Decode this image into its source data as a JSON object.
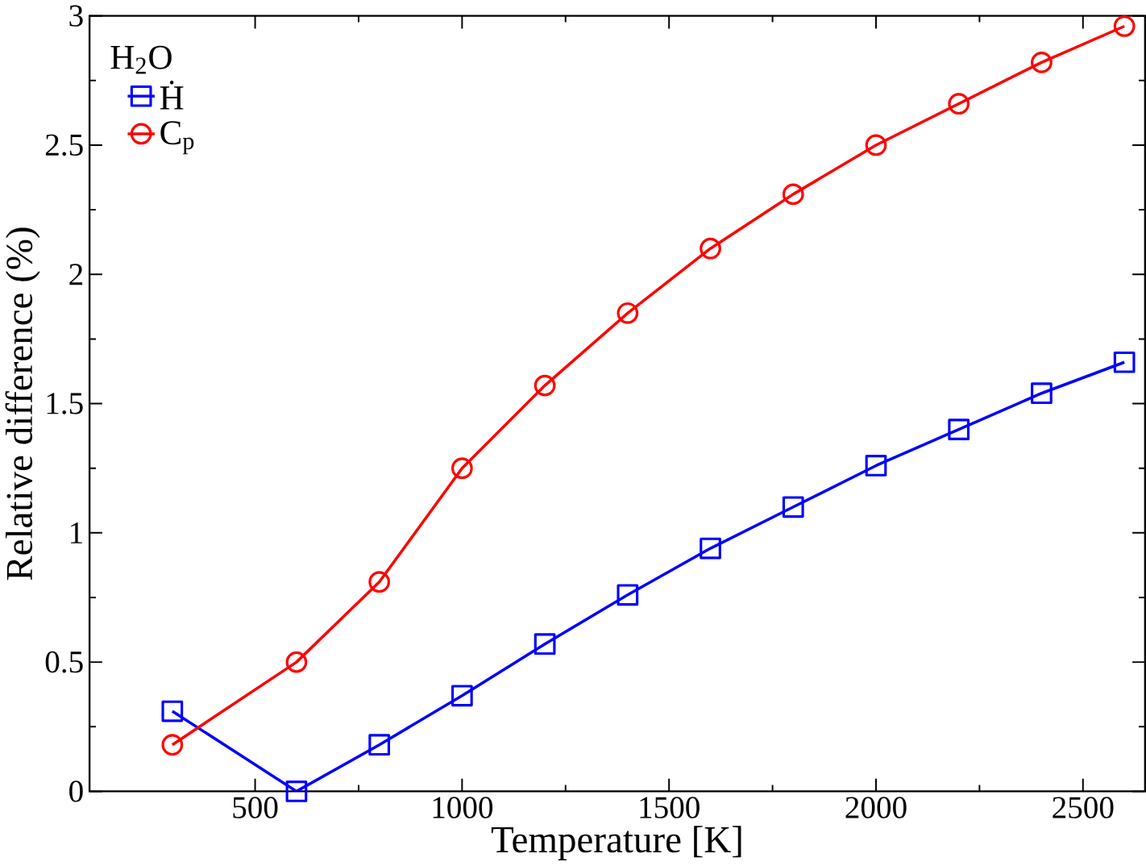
{
  "chart_data": {
    "type": "line",
    "xlabel": "Temperature [K]",
    "ylabel": "Relative difference (%)",
    "legend_title": "H$_{2}$O",
    "x": [
      300,
      600,
      800,
      1000,
      1200,
      1400,
      1600,
      1800,
      2000,
      2200,
      2400,
      2600
    ],
    "series": [
      {
        "name": "Ḣ",
        "color": "#0000ff",
        "marker": "square",
        "values": [
          0.31,
          0.0,
          0.18,
          0.37,
          0.57,
          0.76,
          0.94,
          1.1,
          1.26,
          1.4,
          1.54,
          1.66
        ]
      },
      {
        "name": "C$_{p}$",
        "color": "#ff0000",
        "marker": "circle",
        "values": [
          0.18,
          0.5,
          0.81,
          1.25,
          1.57,
          1.85,
          2.1,
          2.31,
          2.5,
          2.66,
          2.82,
          2.96
        ]
      }
    ],
    "xlim": [
      100,
      2650
    ],
    "ylim": [
      0,
      3
    ],
    "xticks": [
      500,
      1000,
      1500,
      2000,
      2500
    ],
    "yticks": [
      0,
      0.5,
      1,
      1.5,
      2,
      2.5,
      3
    ],
    "grid": false,
    "legend": "top left"
  }
}
